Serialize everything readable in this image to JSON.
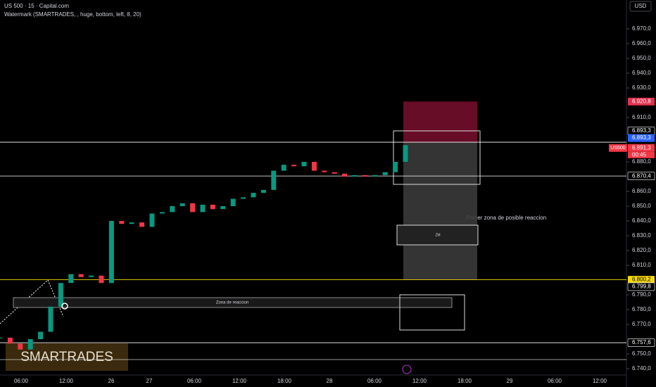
{
  "header": {
    "symbol": "US 500 · 15 · Capital.com",
    "indicator": "Watermark (SMARTRADES, , huge, bottom, left, 8, 20)",
    "currency": "USD"
  },
  "watermark": "SMARTRADES",
  "annotations": {
    "zone": "Zona de reaccion",
    "first_zone": "Primer zona de posible reaccion",
    "zm": "ZM"
  },
  "chart_data": {
    "type": "candlestick",
    "x_labels": [
      "06:00",
      "12:00",
      "26",
      "27",
      "06:00",
      "12:00",
      "18:00",
      "28",
      "06:00",
      "12:00",
      "18:00",
      "29",
      "06:00",
      "12:00"
    ],
    "values": [
      6761,
      6757,
      6753,
      6760,
      6765,
      6782,
      6798,
      6804,
      6802,
      6803,
      6798,
      6840,
      6838,
      6839,
      6836,
      6845,
      6846,
      6850,
      6852,
      6846,
      6851,
      6848,
      6850,
      6855,
      6856,
      6859,
      6861,
      6874,
      6878,
      6877,
      6880,
      6874,
      6873,
      6872,
      6870,
      6871,
      6870,
      6871,
      6873,
      6880,
      6891.3
    ],
    "up_color": "#089981",
    "down_color": "#f23645",
    "ylim": [
      6740,
      6980
    ],
    "yticks": [
      {
        "value": 6740,
        "label": "6.740,0"
      },
      {
        "value": 6750,
        "label": "6.750,0"
      },
      {
        "value": 6770,
        "label": "6.770,0"
      },
      {
        "value": 6780,
        "label": "6.780,0"
      },
      {
        "value": 6790,
        "label": "6.790,0"
      },
      {
        "value": 6810,
        "label": "6.810,0"
      },
      {
        "value": 6820,
        "label": "6.820,0"
      },
      {
        "value": 6830,
        "label": "6.830,0"
      },
      {
        "value": 6840,
        "label": "6.840,0"
      },
      {
        "value": 6850,
        "label": "6.850,0"
      },
      {
        "value": 6860,
        "label": "6.860,0"
      },
      {
        "value": 6880,
        "label": "6.880,0"
      },
      {
        "value": 6910,
        "label": "6.910,0"
      },
      {
        "value": 6930,
        "label": "6.930,0"
      },
      {
        "value": 6940,
        "label": "6.940,0"
      },
      {
        "value": 6950,
        "label": "6.950,0"
      },
      {
        "value": 6960,
        "label": "6.960,0"
      },
      {
        "value": 6970,
        "label": "6.970,0"
      }
    ],
    "levels": [
      {
        "value": 6920.8,
        "label": "6.920,8",
        "color": "#e0314f"
      },
      {
        "value": 6893.3,
        "label": "6.893,3",
        "color": "#000000"
      },
      {
        "value": 6893.3,
        "label": "6.893,3",
        "color": "#2962ff"
      },
      {
        "value": 6891.3,
        "label": "6.891,3",
        "color": "#f23645"
      },
      {
        "value": 6870.4,
        "label": "6.870,4",
        "color": "#000000"
      },
      {
        "value": 6800.2,
        "label": "6.800,2",
        "color": "#f5d90a"
      },
      {
        "value": 6799.8,
        "label": "6.799,8",
        "color": "#000000"
      },
      {
        "value": 6757.6,
        "label": "6.757,6",
        "color": "#000000"
      }
    ],
    "current": {
      "symbol": "US500",
      "countdown": "00:45"
    }
  }
}
